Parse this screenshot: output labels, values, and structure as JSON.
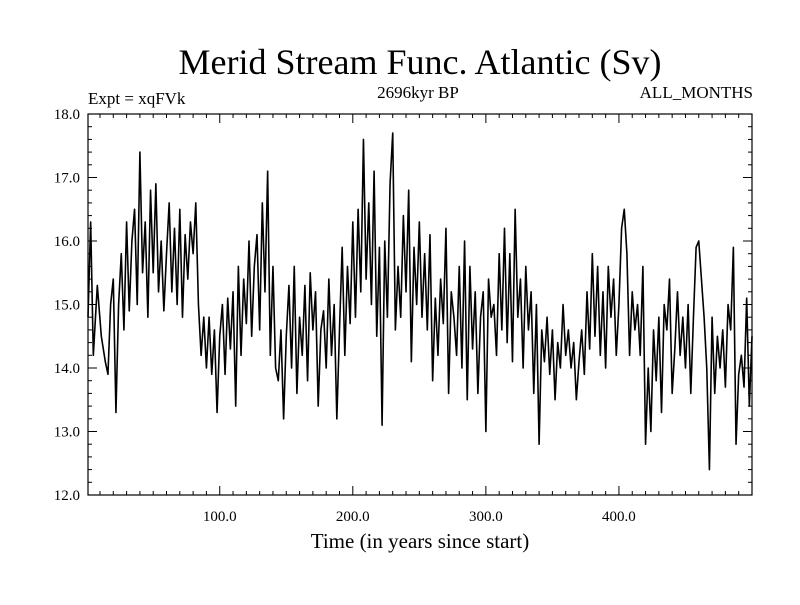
{
  "chart_data": {
    "type": "line",
    "title": "Merid Stream Func. Atlantic (Sv)",
    "subtitle_left": "Expt = xqFVk",
    "subtitle_center": "2696kyr BP",
    "subtitle_right": "ALL_MONTHS",
    "xlabel": "Time (in years since start)",
    "ylabel": "",
    "xlim": [
      1,
      500
    ],
    "ylim": [
      12.0,
      18.0
    ],
    "x_ticks": [
      100,
      200,
      300,
      400
    ],
    "x_tick_labels": [
      "100.0",
      "200.0",
      "300.0",
      "400.0"
    ],
    "y_ticks": [
      12,
      13,
      14,
      15,
      16,
      17,
      18
    ],
    "y_tick_labels": [
      "12.0",
      "13.0",
      "14.0",
      "15.0",
      "16.0",
      "17.0",
      "18.0"
    ],
    "line_color": "#000000",
    "series": [
      {
        "name": "Merid Stream Func. Atlantic",
        "anchors": [
          [
            1,
            14.8
          ],
          [
            3,
            16.3
          ],
          [
            5,
            14.2
          ],
          [
            8,
            15.3
          ],
          [
            11,
            14.5
          ],
          [
            14,
            14.1
          ],
          [
            16,
            13.9
          ],
          [
            18,
            15.0
          ],
          [
            20,
            15.4
          ],
          [
            22,
            13.3
          ],
          [
            24,
            15.0
          ],
          [
            26,
            15.8
          ],
          [
            28,
            14.6
          ],
          [
            30,
            16.3
          ],
          [
            32,
            14.9
          ],
          [
            34,
            16.0
          ],
          [
            36,
            16.5
          ],
          [
            38,
            15.0
          ],
          [
            40,
            17.4
          ],
          [
            42,
            15.5
          ],
          [
            44,
            16.3
          ],
          [
            46,
            14.8
          ],
          [
            48,
            16.8
          ],
          [
            50,
            15.5
          ],
          [
            52,
            16.9
          ],
          [
            54,
            15.2
          ],
          [
            56,
            16.0
          ],
          [
            58,
            14.9
          ],
          [
            60,
            15.8
          ],
          [
            62,
            16.6
          ],
          [
            64,
            15.2
          ],
          [
            66,
            16.2
          ],
          [
            68,
            15.0
          ],
          [
            70,
            16.5
          ],
          [
            72,
            14.8
          ],
          [
            74,
            16.1
          ],
          [
            76,
            15.4
          ],
          [
            78,
            16.3
          ],
          [
            80,
            15.8
          ],
          [
            82,
            16.6
          ],
          [
            84,
            15.0
          ],
          [
            86,
            14.2
          ],
          [
            88,
            14.8
          ],
          [
            90,
            14.0
          ],
          [
            92,
            14.8
          ],
          [
            94,
            13.9
          ],
          [
            96,
            14.6
          ],
          [
            98,
            13.3
          ],
          [
            100,
            14.5
          ],
          [
            102,
            15.0
          ],
          [
            104,
            13.9
          ],
          [
            106,
            15.1
          ],
          [
            108,
            14.3
          ],
          [
            110,
            15.2
          ],
          [
            112,
            13.4
          ],
          [
            114,
            15.6
          ],
          [
            116,
            14.2
          ],
          [
            118,
            15.4
          ],
          [
            120,
            14.7
          ],
          [
            122,
            16.0
          ],
          [
            124,
            14.5
          ],
          [
            126,
            15.6
          ],
          [
            128,
            16.1
          ],
          [
            130,
            14.6
          ],
          [
            132,
            16.6
          ],
          [
            134,
            15.2
          ],
          [
            136,
            17.1
          ],
          [
            138,
            14.2
          ],
          [
            140,
            15.6
          ],
          [
            142,
            14.0
          ],
          [
            144,
            13.8
          ],
          [
            146,
            14.6
          ],
          [
            148,
            13.2
          ],
          [
            150,
            14.5
          ],
          [
            152,
            15.3
          ],
          [
            154,
            14.0
          ],
          [
            156,
            15.6
          ],
          [
            158,
            13.6
          ],
          [
            160,
            14.8
          ],
          [
            162,
            14.2
          ],
          [
            164,
            15.3
          ],
          [
            166,
            13.8
          ],
          [
            168,
            15.5
          ],
          [
            170,
            14.6
          ],
          [
            172,
            15.2
          ],
          [
            174,
            13.4
          ],
          [
            176,
            14.6
          ],
          [
            178,
            14.9
          ],
          [
            180,
            14.0
          ],
          [
            182,
            15.4
          ],
          [
            184,
            14.2
          ],
          [
            186,
            15.0
          ],
          [
            188,
            13.2
          ],
          [
            190,
            14.6
          ],
          [
            192,
            15.9
          ],
          [
            194,
            14.2
          ],
          [
            196,
            15.6
          ],
          [
            198,
            14.7
          ],
          [
            200,
            16.3
          ],
          [
            202,
            14.8
          ],
          [
            204,
            16.5
          ],
          [
            206,
            15.2
          ],
          [
            208,
            17.6
          ],
          [
            210,
            15.4
          ],
          [
            212,
            16.6
          ],
          [
            214,
            15.0
          ],
          [
            216,
            17.1
          ],
          [
            218,
            14.5
          ],
          [
            220,
            15.9
          ],
          [
            222,
            13.1
          ],
          [
            224,
            16.0
          ],
          [
            226,
            14.8
          ],
          [
            228,
            16.9
          ],
          [
            230,
            17.7
          ],
          [
            232,
            14.6
          ],
          [
            234,
            15.6
          ],
          [
            236,
            14.8
          ],
          [
            238,
            16.4
          ],
          [
            240,
            15.2
          ],
          [
            242,
            16.8
          ],
          [
            244,
            14.1
          ],
          [
            246,
            15.9
          ],
          [
            248,
            15.0
          ],
          [
            250,
            16.3
          ],
          [
            252,
            14.8
          ],
          [
            254,
            15.8
          ],
          [
            256,
            14.6
          ],
          [
            258,
            16.1
          ],
          [
            260,
            13.8
          ],
          [
            262,
            15.1
          ],
          [
            264,
            14.2
          ],
          [
            266,
            15.4
          ],
          [
            268,
            14.7
          ],
          [
            270,
            16.2
          ],
          [
            272,
            13.6
          ],
          [
            274,
            15.2
          ],
          [
            276,
            14.8
          ],
          [
            278,
            14.2
          ],
          [
            280,
            15.6
          ],
          [
            282,
            14.0
          ],
          [
            284,
            16.0
          ],
          [
            286,
            13.5
          ],
          [
            288,
            15.6
          ],
          [
            290,
            14.3
          ],
          [
            292,
            15.2
          ],
          [
            294,
            13.6
          ],
          [
            296,
            14.8
          ],
          [
            298,
            15.2
          ],
          [
            300,
            13.0
          ],
          [
            302,
            15.4
          ],
          [
            304,
            14.8
          ],
          [
            306,
            15.0
          ],
          [
            308,
            14.2
          ],
          [
            310,
            15.8
          ],
          [
            312,
            14.6
          ],
          [
            314,
            16.2
          ],
          [
            316,
            14.4
          ],
          [
            318,
            15.8
          ],
          [
            320,
            14.1
          ],
          [
            322,
            16.5
          ],
          [
            324,
            14.8
          ],
          [
            326,
            15.4
          ],
          [
            328,
            14.0
          ],
          [
            330,
            15.6
          ],
          [
            332,
            14.6
          ],
          [
            334,
            15.2
          ],
          [
            336,
            13.6
          ],
          [
            338,
            15.0
          ],
          [
            340,
            12.8
          ],
          [
            342,
            14.6
          ],
          [
            344,
            14.1
          ],
          [
            346,
            14.8
          ],
          [
            348,
            13.9
          ],
          [
            350,
            14.6
          ],
          [
            352,
            13.5
          ],
          [
            354,
            14.4
          ],
          [
            356,
            14.0
          ],
          [
            358,
            15.0
          ],
          [
            360,
            14.2
          ],
          [
            362,
            14.6
          ],
          [
            364,
            14.0
          ],
          [
            366,
            14.4
          ],
          [
            368,
            13.5
          ],
          [
            370,
            14.1
          ],
          [
            372,
            14.6
          ],
          [
            374,
            13.9
          ],
          [
            376,
            15.2
          ],
          [
            378,
            14.3
          ],
          [
            380,
            15.8
          ],
          [
            382,
            14.5
          ],
          [
            384,
            15.6
          ],
          [
            386,
            14.2
          ],
          [
            388,
            15.2
          ],
          [
            390,
            14.0
          ],
          [
            392,
            15.6
          ],
          [
            394,
            14.8
          ],
          [
            396,
            15.4
          ],
          [
            398,
            14.2
          ],
          [
            400,
            15.0
          ],
          [
            402,
            16.2
          ],
          [
            404,
            16.5
          ],
          [
            406,
            15.8
          ],
          [
            408,
            14.2
          ],
          [
            410,
            15.2
          ],
          [
            412,
            14.6
          ],
          [
            414,
            15.0
          ],
          [
            416,
            14.2
          ],
          [
            418,
            15.6
          ],
          [
            420,
            12.8
          ],
          [
            422,
            14.0
          ],
          [
            424,
            13.0
          ],
          [
            426,
            14.6
          ],
          [
            428,
            13.8
          ],
          [
            430,
            14.8
          ],
          [
            432,
            13.3
          ],
          [
            434,
            15.0
          ],
          [
            436,
            14.6
          ],
          [
            438,
            15.4
          ],
          [
            440,
            13.6
          ],
          [
            442,
            14.3
          ],
          [
            444,
            15.2
          ],
          [
            446,
            14.2
          ],
          [
            448,
            14.8
          ],
          [
            450,
            14.0
          ],
          [
            452,
            15.0
          ],
          [
            454,
            13.6
          ],
          [
            456,
            14.8
          ],
          [
            458,
            15.9
          ],
          [
            460,
            16.0
          ],
          [
            462,
            15.4
          ],
          [
            464,
            14.8
          ],
          [
            466,
            14.0
          ],
          [
            468,
            12.4
          ],
          [
            470,
            14.8
          ],
          [
            472,
            13.6
          ],
          [
            474,
            14.5
          ],
          [
            476,
            14.0
          ],
          [
            478,
            14.6
          ],
          [
            480,
            13.7
          ],
          [
            482,
            15.0
          ],
          [
            484,
            14.6
          ],
          [
            486,
            15.9
          ],
          [
            488,
            12.8
          ],
          [
            490,
            13.9
          ],
          [
            492,
            14.2
          ],
          [
            494,
            13.7
          ],
          [
            496,
            15.1
          ],
          [
            498,
            13.4
          ],
          [
            500,
            14.5
          ]
        ]
      }
    ]
  }
}
